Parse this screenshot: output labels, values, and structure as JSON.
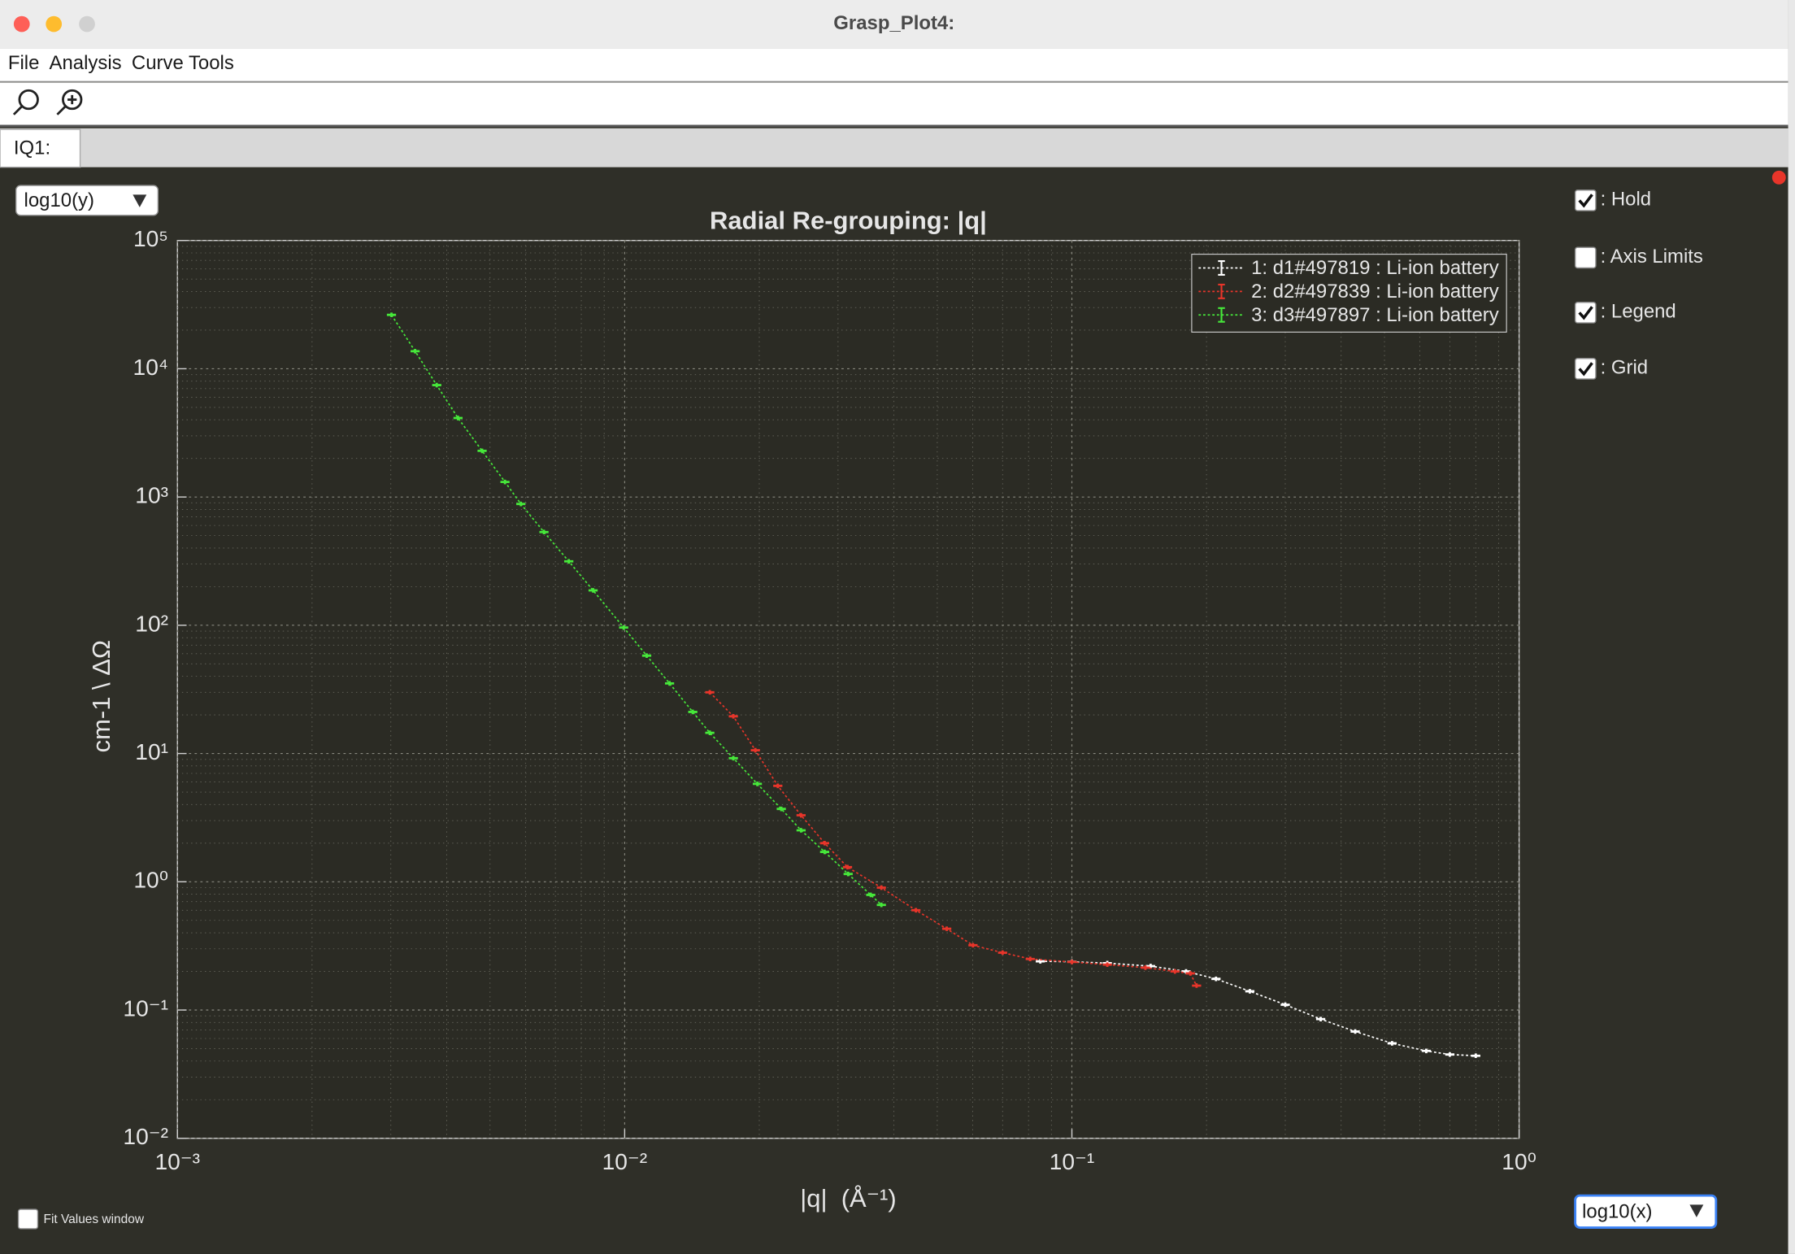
{
  "window": {
    "title": "Grasp_Plot4:"
  },
  "menu": [
    "File",
    "Analysis",
    "Curve Tools"
  ],
  "tab": "IQ1:",
  "controls": {
    "y_scale": "log10(y)",
    "x_scale": "log10(x)",
    "checkboxes": [
      {
        "label": ": Hold",
        "checked": true
      },
      {
        "label": ": Axis Limits",
        "checked": false
      },
      {
        "label": ": Legend",
        "checked": true
      },
      {
        "label": ": Grid",
        "checked": true
      }
    ],
    "fit_values": {
      "label": "Fit Values window",
      "checked": false
    }
  },
  "chart_data": {
    "type": "line",
    "title": "Radial Re-grouping: |q|",
    "x_label": "|q|  (Å⁻¹)",
    "y_label": "cm-1 \\ ΔΩ",
    "x_scale": "log",
    "y_scale": "log",
    "grid": true,
    "legend": "upper right",
    "xlim": [
      0.001,
      1
    ],
    "ylim": [
      0.01,
      100000
    ],
    "xticks": [
      {
        "value": 0.001,
        "label": "10⁻³"
      },
      {
        "value": 0.01,
        "label": "10⁻²"
      },
      {
        "value": 0.1,
        "label": "10⁻¹"
      },
      {
        "value": 1,
        "label": "10⁰"
      }
    ],
    "yticks": [
      {
        "value": 0.01,
        "label": "10⁻²"
      },
      {
        "value": 0.1,
        "label": "10⁻¹"
      },
      {
        "value": 1,
        "label": "10⁰"
      },
      {
        "value": 10,
        "label": "10¹"
      },
      {
        "value": 100,
        "label": "10²"
      },
      {
        "value": 1000,
        "label": "10³"
      },
      {
        "value": 10000,
        "label": "10⁴"
      },
      {
        "value": 100000,
        "label": "10⁵"
      }
    ],
    "series": [
      {
        "name": "1: d1#497819 : Li-ion battery",
        "color": "#ffffff",
        "x": [
          0.085,
          0.1,
          0.12,
          0.15,
          0.18,
          0.21,
          0.25,
          0.3,
          0.36,
          0.43,
          0.52,
          0.62,
          0.7,
          0.8
        ],
        "values": [
          0.24,
          0.238,
          0.232,
          0.22,
          0.2,
          0.175,
          0.14,
          0.11,
          0.085,
          0.068,
          0.055,
          0.048,
          0.045,
          0.044
        ]
      },
      {
        "name": "2: d2#497839 : Li-ion battery",
        "color": "#e8352a",
        "x": [
          0.0155,
          0.0175,
          0.0196,
          0.022,
          0.0248,
          0.028,
          0.0315,
          0.0375,
          0.0448,
          0.0525,
          0.0601,
          0.07,
          0.0807,
          0.1,
          0.12,
          0.146,
          0.17,
          0.184,
          0.19
        ],
        "values": [
          30,
          19.5,
          10.6,
          5.6,
          3.3,
          2.0,
          1.3,
          0.9,
          0.6,
          0.43,
          0.32,
          0.28,
          0.25,
          0.237,
          0.226,
          0.214,
          0.2,
          0.193,
          0.155
        ]
      },
      {
        "name": "3: d3#497897 : Li-ion battery",
        "color": "#46e83a",
        "x": [
          0.00301,
          0.0034,
          0.0038,
          0.00424,
          0.0048,
          0.0054,
          0.00586,
          0.0066,
          0.0075,
          0.0085,
          0.00995,
          0.0112,
          0.0126,
          0.0142,
          0.0155,
          0.0175,
          0.0198,
          0.0224,
          0.0248,
          0.028,
          0.0316,
          0.0355,
          0.0375
        ],
        "values": [
          26300,
          13700,
          7450,
          4130,
          2290,
          1310,
          883,
          533,
          315,
          187,
          96,
          58,
          35.2,
          21.1,
          14.5,
          9.2,
          5.8,
          3.7,
          2.52,
          1.71,
          1.15,
          0.79,
          0.66
        ]
      }
    ]
  }
}
